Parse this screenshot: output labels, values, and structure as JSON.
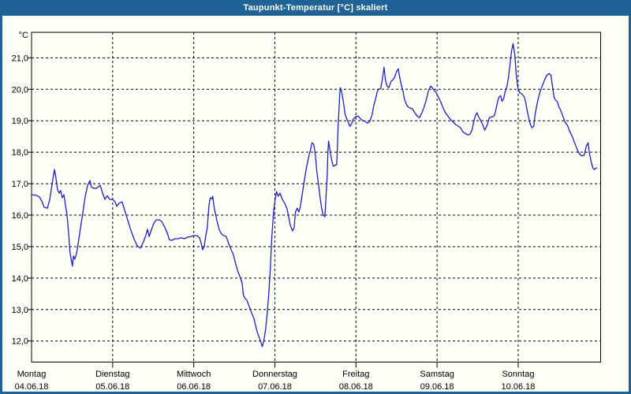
{
  "title_bar": {
    "title": "Taupunkt-Temperatur [°C] skaliert",
    "bg_color": "#1E6296",
    "text_color": "#FFFFFF"
  },
  "panel": {
    "bg_color": "#FBFFF5"
  },
  "chart_data": {
    "type": "line",
    "title": "Taupunkt-Temperatur [°C] skaliert",
    "grid": "dashed",
    "grid_color": "#000000",
    "y_axis": {
      "unit_label": "°C",
      "tick_values": [
        21,
        20,
        19,
        18,
        17,
        16,
        15,
        14,
        13,
        12
      ],
      "tick_labels": [
        "21,0",
        "20,0",
        "19,0",
        "18,0",
        "17,0",
        "16,0",
        "15,0",
        "14,0",
        "13,0",
        "12,0"
      ],
      "ylim": [
        11.33,
        21.81
      ]
    },
    "x_axis": {
      "unit": "hours since Montag 04.06.18 00:00",
      "xlim_hours": [
        0,
        168.4
      ],
      "day_tick_hours": [
        0,
        24,
        48,
        72,
        96,
        120,
        144
      ],
      "days": [
        {
          "name": "Montag",
          "date": "04.06.18"
        },
        {
          "name": "Dienstag",
          "date": "05.06.18"
        },
        {
          "name": "Mittwoch",
          "date": "06.06.18"
        },
        {
          "name": "Donnerstag",
          "date": "07.06.18"
        },
        {
          "name": "Freitag",
          "date": "08.06.18"
        },
        {
          "name": "Samstag",
          "date": "09.06.18"
        },
        {
          "name": "Sonntag",
          "date": "10.06.18"
        }
      ]
    },
    "series": [
      {
        "name": "Taupunkt",
        "color": "#1E1EC8",
        "points": [
          [
            0,
            16.65
          ],
          [
            1.4,
            16.63
          ],
          [
            2.3,
            16.58
          ],
          [
            3,
            16.45
          ],
          [
            3.7,
            16.25
          ],
          [
            4.7,
            16.22
          ],
          [
            5.4,
            16.5
          ],
          [
            6.1,
            17
          ],
          [
            6.8,
            17.45
          ],
          [
            7.2,
            17.2
          ],
          [
            7.7,
            16.8
          ],
          [
            8.2,
            16.7
          ],
          [
            8.6,
            16.78
          ],
          [
            9.1,
            16.55
          ],
          [
            9.6,
            16.65
          ],
          [
            10,
            16.35
          ],
          [
            10.5,
            16
          ],
          [
            11,
            15.4
          ],
          [
            11.4,
            14.8
          ],
          [
            12.1,
            14.38
          ],
          [
            12.4,
            14.7
          ],
          [
            12.8,
            14.6
          ],
          [
            13.3,
            14.78
          ],
          [
            13.8,
            15.1
          ],
          [
            14.5,
            15.6
          ],
          [
            15.2,
            16.1
          ],
          [
            15.9,
            16.6
          ],
          [
            16.6,
            16.95
          ],
          [
            17.3,
            17.1
          ],
          [
            17.7,
            16.9
          ],
          [
            18.4,
            16.85
          ],
          [
            19.1,
            16.85
          ],
          [
            19.8,
            16.9
          ],
          [
            20.3,
            16.95
          ],
          [
            21,
            16.7
          ],
          [
            21.7,
            16.5
          ],
          [
            22.4,
            16.62
          ],
          [
            23.1,
            16.5
          ],
          [
            24,
            16.5
          ],
          [
            24.7,
            16.42
          ],
          [
            25.2,
            16.28
          ],
          [
            25.9,
            16.38
          ],
          [
            26.8,
            16.42
          ],
          [
            28,
            16
          ],
          [
            29.2,
            15.58
          ],
          [
            30.3,
            15.25
          ],
          [
            31.3,
            15.02
          ],
          [
            32.2,
            14.95
          ],
          [
            33.1,
            15.15
          ],
          [
            33.8,
            15.35
          ],
          [
            34.3,
            15.55
          ],
          [
            34.8,
            15.32
          ],
          [
            35.5,
            15.55
          ],
          [
            36.2,
            15.75
          ],
          [
            36.9,
            15.85
          ],
          [
            37.8,
            15.85
          ],
          [
            38.5,
            15.8
          ],
          [
            39.4,
            15.62
          ],
          [
            40.1,
            15.45
          ],
          [
            40.8,
            15.22
          ],
          [
            41.5,
            15.2
          ],
          [
            42.4,
            15.25
          ],
          [
            43.4,
            15.25
          ],
          [
            44.3,
            15.28
          ],
          [
            45.2,
            15.25
          ],
          [
            46.2,
            15.3
          ],
          [
            47.1,
            15.32
          ],
          [
            48,
            15.35
          ],
          [
            49,
            15.35
          ],
          [
            49.7,
            15.28
          ],
          [
            50.1,
            15.15
          ],
          [
            50.6,
            14.9
          ],
          [
            51.1,
            15
          ],
          [
            51.5,
            15.3
          ],
          [
            52,
            15.6
          ],
          [
            52.5,
            16.3
          ],
          [
            52.9,
            16.55
          ],
          [
            53.4,
            16.52
          ],
          [
            53.6,
            16.6
          ],
          [
            54.1,
            16.2
          ],
          [
            54.8,
            15.85
          ],
          [
            55.5,
            15.55
          ],
          [
            56.2,
            15.4
          ],
          [
            56.9,
            15.35
          ],
          [
            57.6,
            15.32
          ],
          [
            58.3,
            15.1
          ],
          [
            59,
            14.92
          ],
          [
            59.7,
            14.75
          ],
          [
            60.4,
            14.45
          ],
          [
            61.1,
            14.2
          ],
          [
            61.8,
            14
          ],
          [
            62.3,
            13.85
          ],
          [
            62.7,
            13.45
          ],
          [
            63.2,
            13.35
          ],
          [
            63.7,
            13.3
          ],
          [
            64.4,
            13.1
          ],
          [
            65.1,
            12.9
          ],
          [
            65.8,
            12.72
          ],
          [
            66.5,
            12.4
          ],
          [
            66.9,
            12.25
          ],
          [
            67.4,
            12.1
          ],
          [
            67.9,
            11.95
          ],
          [
            68.3,
            11.82
          ],
          [
            68.8,
            12.05
          ],
          [
            69.3,
            12.4
          ],
          [
            69.7,
            12.85
          ],
          [
            70.2,
            13.5
          ],
          [
            70.7,
            14.4
          ],
          [
            71.1,
            15.3
          ],
          [
            71.6,
            16.1
          ],
          [
            72.1,
            16.5
          ],
          [
            72.5,
            16.75
          ],
          [
            73,
            16.6
          ],
          [
            73.5,
            16.7
          ],
          [
            74.2,
            16.5
          ],
          [
            74.9,
            16.38
          ],
          [
            75.6,
            16.2
          ],
          [
            76,
            16
          ],
          [
            76.5,
            15.7
          ],
          [
            77.2,
            15.5
          ],
          [
            77.7,
            15.6
          ],
          [
            78.1,
            16.1
          ],
          [
            78.6,
            16.22
          ],
          [
            79.1,
            16.1
          ],
          [
            79.5,
            16.25
          ],
          [
            80,
            16.6
          ],
          [
            80.7,
            17.1
          ],
          [
            81.4,
            17.55
          ],
          [
            82.1,
            17.9
          ],
          [
            82.6,
            18.1
          ],
          [
            83,
            18.3
          ],
          [
            83.5,
            18.25
          ],
          [
            84,
            17.9
          ],
          [
            84.4,
            17.4
          ],
          [
            84.9,
            17
          ],
          [
            85.4,
            16.55
          ],
          [
            85.8,
            16.25
          ],
          [
            86.3,
            16
          ],
          [
            86.8,
            15.95
          ],
          [
            87,
            16.3
          ],
          [
            87.2,
            16.7
          ],
          [
            87.5,
            17.3
          ],
          [
            87.7,
            18
          ],
          [
            87.9,
            18.35
          ],
          [
            88.4,
            18
          ],
          [
            88.9,
            17.7
          ],
          [
            89.3,
            17.55
          ],
          [
            89.8,
            17.58
          ],
          [
            90.3,
            17.6
          ],
          [
            90.5,
            18.1
          ],
          [
            90.7,
            18.8
          ],
          [
            91,
            19.4
          ],
          [
            91.2,
            19.85
          ],
          [
            91.4,
            20.05
          ],
          [
            91.9,
            19.85
          ],
          [
            92.4,
            19.5
          ],
          [
            92.8,
            19.2
          ],
          [
            93.5,
            19
          ],
          [
            94.2,
            18.82
          ],
          [
            94.7,
            18.9
          ],
          [
            95.2,
            19.05
          ],
          [
            95.9,
            19.12
          ],
          [
            96.6,
            19.15
          ],
          [
            97.2,
            19.08
          ],
          [
            98,
            19
          ],
          [
            98.7,
            18.98
          ],
          [
            99.4,
            18.92
          ],
          [
            100.1,
            18.98
          ],
          [
            100.8,
            19.2
          ],
          [
            101.2,
            19.45
          ],
          [
            101.7,
            19.65
          ],
          [
            102.2,
            19.88
          ],
          [
            102.6,
            20
          ],
          [
            103.3,
            20.02
          ],
          [
            103.8,
            20.3
          ],
          [
            104.3,
            20.7
          ],
          [
            104.7,
            20.3
          ],
          [
            105.2,
            20.1
          ],
          [
            105.7,
            20.05
          ],
          [
            106.4,
            20.25
          ],
          [
            107.3,
            20.35
          ],
          [
            108,
            20.55
          ],
          [
            108.5,
            20.65
          ],
          [
            108.9,
            20.4
          ],
          [
            109.4,
            20.15
          ],
          [
            109.9,
            19.95
          ],
          [
            110.3,
            19.7
          ],
          [
            110.8,
            19.55
          ],
          [
            111.3,
            19.45
          ],
          [
            112,
            19.4
          ],
          [
            112.7,
            19.38
          ],
          [
            113.4,
            19.25
          ],
          [
            114.1,
            19.15
          ],
          [
            114.8,
            19.1
          ],
          [
            115.5,
            19.25
          ],
          [
            116.2,
            19.45
          ],
          [
            116.9,
            19.7
          ],
          [
            117.3,
            19.9
          ],
          [
            117.8,
            20.05
          ],
          [
            118.2,
            20.1
          ],
          [
            118.9,
            20
          ],
          [
            119.7,
            19.9
          ],
          [
            120.4,
            19.75
          ],
          [
            121.1,
            19.6
          ],
          [
            121.8,
            19.4
          ],
          [
            122.5,
            19.25
          ],
          [
            123.2,
            19.15
          ],
          [
            123.9,
            19.05
          ],
          [
            124.6,
            18.98
          ],
          [
            125.5,
            18.88
          ],
          [
            126.2,
            18.83
          ],
          [
            126.9,
            18.78
          ],
          [
            127.6,
            18.65
          ],
          [
            128.3,
            18.6
          ],
          [
            129,
            18.55
          ],
          [
            129.7,
            18.57
          ],
          [
            130.4,
            18.72
          ],
          [
            130.8,
            18.95
          ],
          [
            131.3,
            19.15
          ],
          [
            131.8,
            19.25
          ],
          [
            132.3,
            19.12
          ],
          [
            132.7,
            19.05
          ],
          [
            133.4,
            18.9
          ],
          [
            134.1,
            18.7
          ],
          [
            134.8,
            18.85
          ],
          [
            135.5,
            19.1
          ],
          [
            136.2,
            19.12
          ],
          [
            136.9,
            19.15
          ],
          [
            137.4,
            19.35
          ],
          [
            137.9,
            19.6
          ],
          [
            138.3,
            19.75
          ],
          [
            138.8,
            19.8
          ],
          [
            139.2,
            19.62
          ],
          [
            139.7,
            19.7
          ],
          [
            140.2,
            19.95
          ],
          [
            140.7,
            20.1
          ],
          [
            141.1,
            20.35
          ],
          [
            141.6,
            20.8
          ],
          [
            142,
            21.2
          ],
          [
            142.5,
            21.45
          ],
          [
            143,
            21.1
          ],
          [
            143.4,
            20.5
          ],
          [
            143.9,
            20.05
          ],
          [
            144.4,
            19.9
          ],
          [
            145.1,
            19.85
          ],
          [
            145.8,
            19.76
          ],
          [
            146.3,
            19.55
          ],
          [
            146.7,
            19.3
          ],
          [
            147.2,
            19.05
          ],
          [
            147.7,
            18.85
          ],
          [
            148.1,
            18.78
          ],
          [
            148.6,
            18.82
          ],
          [
            149,
            19.2
          ],
          [
            149.7,
            19.6
          ],
          [
            150.4,
            19.9
          ],
          [
            151.1,
            20.1
          ],
          [
            151.8,
            20.3
          ],
          [
            152.5,
            20.45
          ],
          [
            153.2,
            20.5
          ],
          [
            153.7,
            20.45
          ],
          [
            154.2,
            20.05
          ],
          [
            154.6,
            19.75
          ],
          [
            155.1,
            19.65
          ],
          [
            155.6,
            19.6
          ],
          [
            156,
            19.45
          ],
          [
            156.5,
            19.35
          ],
          [
            157.2,
            19.15
          ],
          [
            157.9,
            18.95
          ],
          [
            158.6,
            18.85
          ],
          [
            159.3,
            18.65
          ],
          [
            160,
            18.5
          ],
          [
            160.7,
            18.3
          ],
          [
            161.4,
            18.1
          ],
          [
            162.1,
            17.95
          ],
          [
            162.8,
            17.88
          ],
          [
            163.5,
            17.9
          ],
          [
            164.2,
            18.2
          ],
          [
            164.7,
            18.3
          ],
          [
            165.1,
            17.95
          ],
          [
            165.6,
            17.7
          ],
          [
            166.1,
            17.5
          ],
          [
            166.5,
            17.45
          ],
          [
            167.2,
            17.5
          ]
        ]
      }
    ]
  }
}
